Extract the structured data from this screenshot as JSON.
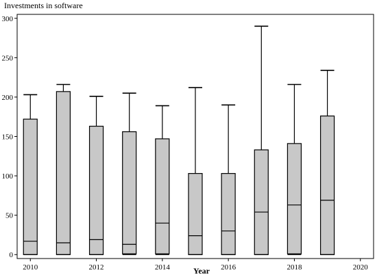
{
  "chart_data": {
    "type": "boxplot",
    "ylabel": "Investments in software",
    "xlabel": "Year",
    "xlim": [
      2009.6,
      2020.4
    ],
    "ylim": [
      -5,
      305
    ],
    "x_ticks": [
      2010,
      2012,
      2014,
      2016,
      2018,
      2020
    ],
    "y_ticks": [
      0,
      50,
      100,
      150,
      200,
      250,
      300
    ],
    "grid": false,
    "box_color": "#c8c8c8",
    "line_color": "#000000",
    "boxes": [
      {
        "year": 2010,
        "min": 0,
        "q1": 0,
        "median": 17,
        "q3": 172,
        "max": 203
      },
      {
        "year": 2011,
        "min": 0,
        "q1": 0,
        "median": 15,
        "q3": 207,
        "max": 216
      },
      {
        "year": 2012,
        "min": 0,
        "q1": 0,
        "median": 19,
        "q3": 163,
        "max": 201
      },
      {
        "year": 2013,
        "min": 0,
        "q1": 1,
        "median": 13,
        "q3": 156,
        "max": 205
      },
      {
        "year": 2014,
        "min": 0,
        "q1": 1,
        "median": 40,
        "q3": 147,
        "max": 189
      },
      {
        "year": 2015,
        "min": 0,
        "q1": 0,
        "median": 24,
        "q3": 103,
        "max": 212
      },
      {
        "year": 2016,
        "min": 0,
        "q1": 0,
        "median": 30,
        "q3": 103,
        "max": 190
      },
      {
        "year": 2017,
        "min": 0,
        "q1": 0,
        "median": 54,
        "q3": 133,
        "max": 290
      },
      {
        "year": 2018,
        "min": 0,
        "q1": 1,
        "median": 63,
        "q3": 141,
        "max": 216
      },
      {
        "year": 2019,
        "min": 0,
        "q1": 0,
        "median": 69,
        "q3": 176,
        "max": 234
      }
    ]
  }
}
